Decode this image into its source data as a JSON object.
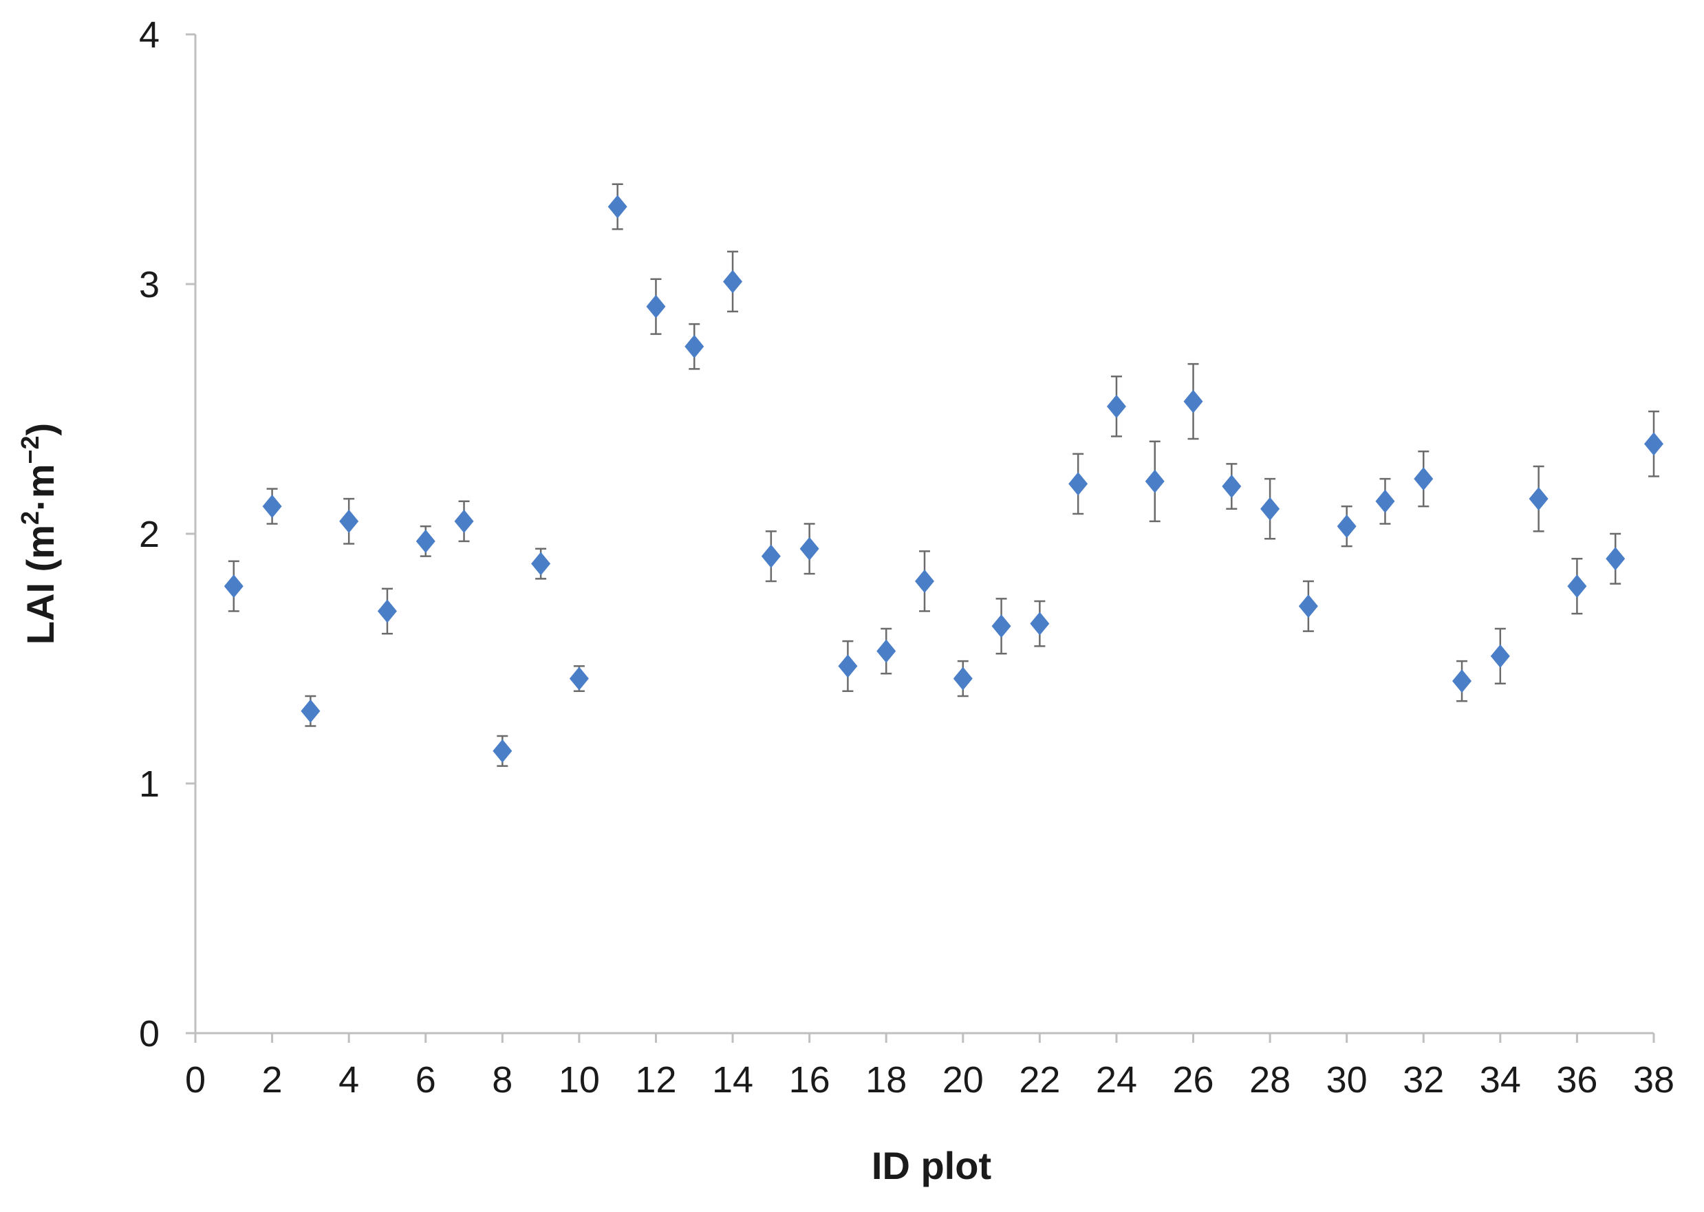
{
  "chart_data": {
    "type": "scatter",
    "xlabel": "ID plot",
    "ylabel": {
      "base": "LAI (m",
      "sup1": "2",
      "mid": "·m",
      "sup2": "−2",
      "end": ")"
    },
    "xlim": [
      0,
      38
    ],
    "ylim": [
      0,
      4
    ],
    "xticks": [
      0,
      2,
      4,
      6,
      8,
      10,
      12,
      14,
      16,
      18,
      20,
      22,
      24,
      26,
      28,
      30,
      32,
      34,
      36,
      38
    ],
    "yticks": [
      0,
      1,
      2,
      3,
      4
    ],
    "grid": false,
    "marker": "diamond",
    "marker_color": "#4a7ec6",
    "error_bar_color": "#6b6b6b",
    "series": [
      {
        "x": [
          1,
          2,
          3,
          4,
          5,
          6,
          7,
          8,
          9,
          10,
          11,
          12,
          13,
          14,
          15,
          16,
          17,
          18,
          19,
          20,
          21,
          22,
          23,
          24,
          25,
          26,
          27,
          28,
          29,
          30,
          31,
          32,
          33,
          34,
          35,
          36,
          37,
          38
        ],
        "y": [
          1.79,
          2.11,
          1.29,
          2.05,
          1.69,
          1.97,
          2.05,
          1.13,
          1.88,
          1.42,
          3.31,
          2.91,
          2.75,
          3.01,
          1.91,
          1.94,
          1.47,
          1.53,
          1.81,
          1.42,
          1.63,
          1.64,
          2.2,
          2.51,
          2.21,
          2.53,
          2.19,
          2.1,
          1.71,
          2.03,
          2.13,
          2.22,
          1.41,
          1.51,
          2.14,
          1.79,
          1.9,
          2.36
        ],
        "error": [
          0.1,
          0.07,
          0.06,
          0.09,
          0.09,
          0.06,
          0.08,
          0.06,
          0.06,
          0.05,
          0.09,
          0.11,
          0.09,
          0.12,
          0.1,
          0.1,
          0.1,
          0.09,
          0.12,
          0.07,
          0.11,
          0.09,
          0.12,
          0.12,
          0.16,
          0.15,
          0.09,
          0.12,
          0.1,
          0.08,
          0.09,
          0.11,
          0.08,
          0.11,
          0.13,
          0.11,
          0.1,
          0.13
        ]
      }
    ]
  }
}
